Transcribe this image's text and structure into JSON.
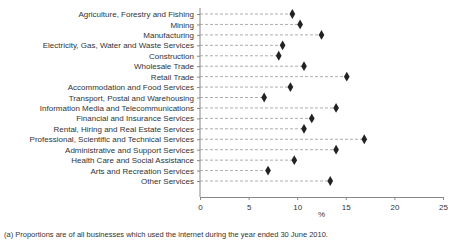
{
  "chart_data": {
    "type": "dot",
    "orientation": "horizontal",
    "categories": [
      "Agriculture, Forestry and Fishing",
      "Mining",
      "Manufacturing",
      "Electricity, Gas, Water and Waste Services",
      "Construction",
      "Wholesale Trade",
      "Retail Trade",
      "Accommodation and Food Services",
      "Transport, Postal and Warehousing",
      "Information Media and Telecommunications",
      "Financial and Insurance Services",
      "Rental, Hiring and Real Estate Services",
      "Professional, Scientific and Technical Services",
      "Administrative and Support Services",
      "Health Care and Social Assistance",
      "Arts and Recreation Services",
      "Other Services"
    ],
    "values": [
      9.5,
      10.3,
      12.5,
      8.5,
      8.1,
      10.7,
      15.1,
      9.3,
      6.6,
      14.0,
      11.5,
      10.7,
      16.9,
      14.0,
      9.7,
      7.0,
      13.4
    ],
    "color": "#222222",
    "marker": "diamond",
    "line_style": "dashed",
    "x_label": "%",
    "xlim": [
      0,
      25
    ],
    "xticks": [
      0,
      5,
      10,
      15,
      20,
      25
    ],
    "annotations": [
      "(a) Proportions are of all businesses which used the internet during the year ended 30 June 2010."
    ]
  }
}
